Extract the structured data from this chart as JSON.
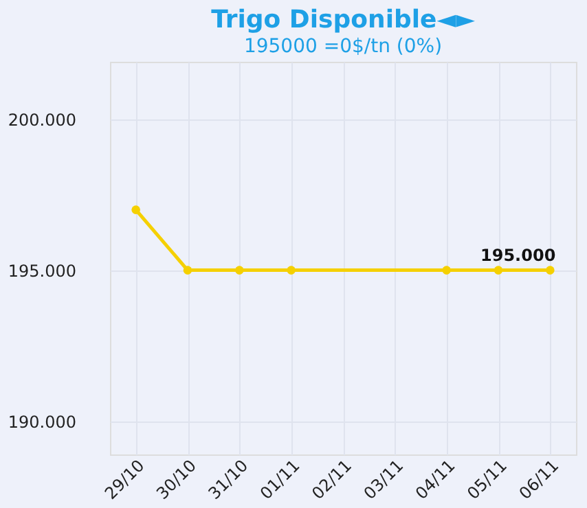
{
  "chart_data": {
    "type": "line",
    "title": "Trigo Disponible◄►",
    "subtitle": "195000 =0$/tn (0%)",
    "categories": [
      "29/10",
      "30/10",
      "31/10",
      "01/11",
      "02/11",
      "03/11",
      "04/11",
      "05/11",
      "06/11"
    ],
    "series": [
      {
        "color": "#f5d000",
        "values": [
          197000,
          195000,
          195000,
          195000,
          null,
          null,
          195000,
          195000,
          195000
        ]
      }
    ],
    "ylim": [
      188900,
      201900
    ],
    "yticks": [
      {
        "value": 190000,
        "label": "190.000"
      },
      {
        "value": 195000,
        "label": "195.000"
      },
      {
        "value": 200000,
        "label": "200.000"
      }
    ],
    "annotations": [
      {
        "text": "195.000",
        "x": "06/11",
        "y": 195000
      }
    ],
    "grid": true,
    "marker": "circle",
    "line_style": "solid"
  }
}
